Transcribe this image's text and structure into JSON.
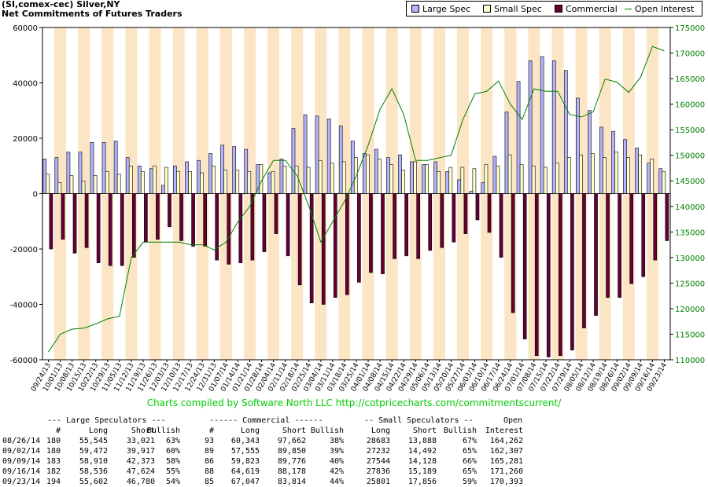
{
  "title_lines": [
    "(SI,comex-cec) Silver,NY",
    "Net Commitments of Futures Traders"
  ],
  "legend": [
    {
      "label": "Large Spec",
      "kind": "bar",
      "color": "#b3b3ff"
    },
    {
      "label": "Small Spec",
      "kind": "bar",
      "color": "#ffffcc"
    },
    {
      "label": "Commercial",
      "kind": "bar",
      "color": "#660033"
    },
    {
      "label": "Open Interest",
      "kind": "line",
      "color": "#008000"
    }
  ],
  "credit": "Charts compiled by Software North LLC  http://cotpricecharts.com/commitmentscurrent/",
  "colors": {
    "stripe": "#fce5c4",
    "large": "#b3b3ff",
    "small": "#ffffcc",
    "commercial": "#660033",
    "oi": "#008000"
  },
  "chart_data": {
    "type": "bar",
    "categories": [
      "09/24/13",
      "10/01/13",
      "10/08/13",
      "10/15/13",
      "10/22/13",
      "10/29/13",
      "11/05/13",
      "11/12/13",
      "11/19/13",
      "11/26/13",
      "12/03/13",
      "12/10/13",
      "12/17/13",
      "12/24/13",
      "12/31/13",
      "01/07/14",
      "01/14/14",
      "01/21/14",
      "01/28/14",
      "02/04/14",
      "02/11/14",
      "02/18/14",
      "02/25/14",
      "03/04/14",
      "03/11/14",
      "03/18/14",
      "03/25/14",
      "04/01/14",
      "04/08/14",
      "04/15/14",
      "04/22/14",
      "04/29/14",
      "05/06/14",
      "05/13/14",
      "05/20/14",
      "05/27/14",
      "06/03/14",
      "06/10/14",
      "06/17/14",
      "06/24/14",
      "07/01/14",
      "07/08/14",
      "07/15/14",
      "07/22/14",
      "07/29/14",
      "08/05/14",
      "08/12/14",
      "08/19/14",
      "08/26/14",
      "09/02/14",
      "09/09/14",
      "09/16/14",
      "09/23/14"
    ],
    "x_tick_labels": [
      "09/24/13",
      "10/01/13",
      "10/08/13",
      "10/15/13",
      "10/22/13",
      "10/29/13",
      "11/05/13",
      "11/12/13",
      "11/19/13",
      "11/26/13",
      "12/03/13",
      "12/10/13",
      "12/17/13",
      "12/24/13",
      "12/31/13",
      "01/07/14",
      "01/14/14",
      "01/21/14",
      "01/28/14",
      "02/04/14",
      "02/11/14",
      "02/18/14",
      "02/25/14",
      "03/04/14",
      "03/11/14",
      "03/18/14",
      "03/25/14",
      "04/01/14",
      "04/08/14",
      "04/15/14",
      "04/22/14",
      "04/29/14",
      "05/06/14",
      "05/13/14",
      "05/20/14",
      "05/27/14",
      "06/03/14",
      "06/10/14",
      "06/17/14",
      "06/24/14",
      "07/01/14",
      "07/08/14",
      "07/15/14",
      "07/22/14",
      "07/29/14",
      "08/05/14",
      "08/12/14",
      "08/19/14",
      "08/26/14",
      "09/02/14",
      "09/09/14",
      "09/16/14",
      "09/23/14"
    ],
    "series": [
      {
        "name": "Large Spec",
        "values": [
          12500,
          13000,
          15000,
          15000,
          18500,
          18500,
          19000,
          13000,
          10000,
          9000,
          3000,
          10000,
          11500,
          12000,
          14500,
          17500,
          17000,
          16000,
          10500,
          7500,
          12500,
          23500,
          28500,
          28000,
          27000,
          24500,
          19000,
          14500,
          16000,
          13000,
          14000,
          11500,
          10500,
          11500,
          8000,
          5000,
          800,
          4000,
          13500,
          29500,
          40500,
          48000,
          49500,
          48000,
          44500,
          34500,
          30000,
          24000,
          22500,
          19500,
          16500,
          11000,
          9000
        ]
      },
      {
        "name": "Small Spec",
        "values": [
          7000,
          4000,
          6500,
          4500,
          6500,
          8000,
          7000,
          10000,
          8000,
          10000,
          9500,
          8000,
          8000,
          7500,
          10000,
          8500,
          8500,
          8000,
          10500,
          8000,
          10000,
          10000,
          9500,
          12000,
          11000,
          11500,
          13000,
          14000,
          12500,
          10500,
          8500,
          11500,
          10500,
          8000,
          9500,
          9500,
          9000,
          10500,
          10000,
          14000,
          10500,
          10000,
          9500,
          11000,
          13000,
          14000,
          14500,
          13000,
          15000,
          13000,
          14000,
          12500,
          8000
        ]
      },
      {
        "name": "Commercial",
        "values": [
          -20000,
          -16500,
          -21500,
          -19500,
          -25000,
          -26000,
          -26000,
          -23000,
          -17500,
          -16500,
          -12000,
          -17000,
          -19000,
          -19000,
          -24000,
          -25500,
          -25000,
          -24000,
          -21000,
          -14500,
          -22500,
          -33000,
          -39500,
          -40000,
          -37500,
          -36500,
          -32000,
          -28500,
          -29000,
          -23500,
          -22500,
          -23500,
          -20500,
          -19500,
          -17500,
          -14500,
          -9500,
          -14000,
          -23000,
          -43000,
          -52500,
          -58500,
          -59000,
          -58500,
          -56500,
          -48500,
          -44000,
          -37500,
          -37500,
          -32500,
          -30000,
          -24000,
          -17000
        ]
      },
      {
        "name": "Open Interest",
        "axis": "right",
        "values": [
          111500,
          115000,
          116000,
          116200,
          117000,
          118000,
          118500,
          130000,
          133000,
          133000,
          133000,
          133000,
          132500,
          132500,
          131500,
          133000,
          137000,
          140000,
          145000,
          149000,
          149000,
          146000,
          140000,
          133000,
          137000,
          141000,
          146000,
          152000,
          159000,
          163000,
          158000,
          149000,
          149000,
          149500,
          150000,
          157000,
          162000,
          162500,
          164500,
          160000,
          157000,
          163000,
          162500,
          162500,
          158000,
          157500,
          158500,
          164900,
          164300,
          162300,
          165300,
          171300,
          170400
        ]
      }
    ],
    "ylim": [
      -60000,
      60000
    ],
    "y_ticks": [
      60000,
      40000,
      20000,
      0,
      -20000,
      -40000,
      -60000
    ],
    "y2lim": [
      110000,
      175000
    ],
    "y2_ticks": [
      175000,
      170000,
      165000,
      160000,
      155000,
      150000,
      145000,
      140000,
      135000,
      130000,
      125000,
      120000,
      115000,
      110000
    ],
    "grid": false,
    "legend_position": "top-right"
  },
  "table": {
    "group_headers": [
      {
        "text": "--- Large Speculators ---",
        "col": 0
      },
      {
        "text": "------ Commercial ------",
        "col": 1
      },
      {
        "text": "-- Small Speculators --",
        "col": 2
      },
      {
        "text": "Open",
        "col": 3
      }
    ],
    "columns": [
      "#",
      "Long",
      "Short",
      "Bullish",
      "#",
      "Long",
      "Short",
      "Bullish",
      "Long",
      "Short",
      "Bullish",
      "Interest"
    ],
    "rows": [
      [
        "08/26/14",
        "180",
        "55,545",
        "33,021",
        "63%",
        "93",
        "60,343",
        "97,662",
        "38%",
        "28683",
        "13,888",
        "67%",
        "164,262"
      ],
      [
        "09/02/14",
        "180",
        "59,472",
        "39,917",
        "60%",
        "89",
        "57,555",
        "89,850",
        "39%",
        "27232",
        "14,492",
        "65%",
        "162,307"
      ],
      [
        "09/09/14",
        "183",
        "58,910",
        "42,373",
        "58%",
        "86",
        "59,823",
        "89,776",
        "40%",
        "27544",
        "14,128",
        "66%",
        "165,281"
      ],
      [
        "09/16/14",
        "182",
        "58,536",
        "47,624",
        "55%",
        "88",
        "64,619",
        "88,178",
        "42%",
        "27836",
        "15,189",
        "65%",
        "171,260"
      ],
      [
        "09/23/14",
        "194",
        "55,602",
        "46,780",
        "54%",
        "85",
        "67,047",
        "83,814",
        "44%",
        "25801",
        "17,856",
        "59%",
        "170,393"
      ]
    ]
  }
}
